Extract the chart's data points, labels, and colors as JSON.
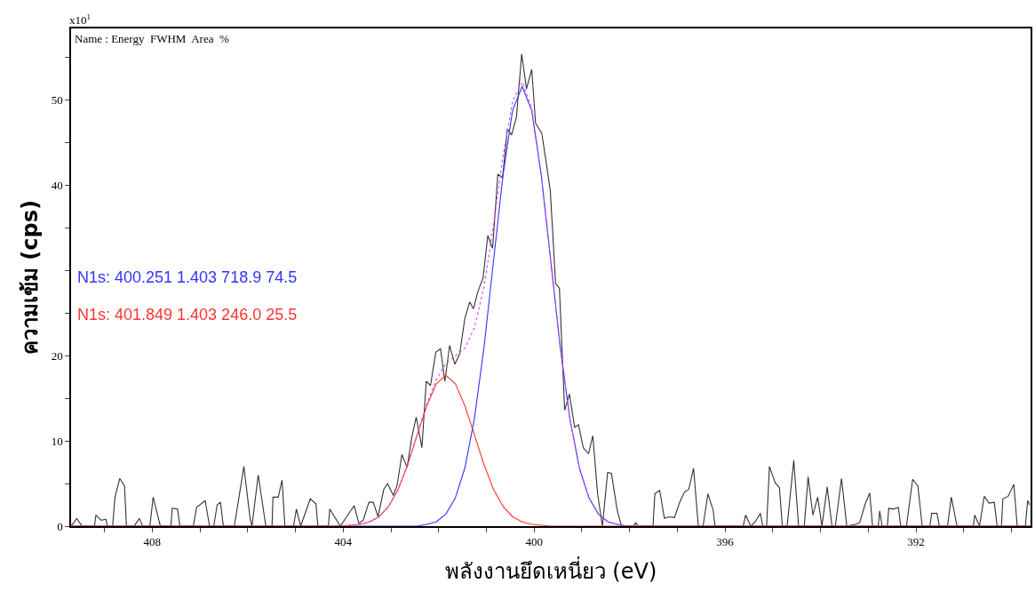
{
  "chart_data": {
    "type": "line",
    "xlabel": "พลังงานยึดเหนี่ยว (eV)",
    "ylabel": "ความเข้ม (cps)",
    "annotations": [
      "x10$^{1}$",
      "Name : Energy  FWHM  Area  %"
    ],
    "xlim": [
      409.7,
      389.6
    ],
    "xticks": [
      {
        "value": 409,
        "label": null
      },
      408,
      {
        "value": 407,
        "label": null
      },
      {
        "value": 406,
        "label": null
      },
      {
        "value": 405,
        "label": null
      },
      404,
      {
        "value": 403,
        "label": null
      },
      {
        "value": 402,
        "label": null
      },
      {
        "value": 401,
        "label": null
      },
      400,
      {
        "value": 399,
        "label": null
      },
      {
        "value": 398,
        "label": null
      },
      {
        "value": 397,
        "label": null
      },
      396,
      {
        "value": 395,
        "label": null
      },
      {
        "value": 394,
        "label": null
      },
      {
        "value": 393,
        "label": null
      },
      392,
      {
        "value": 391,
        "label": null
      },
      {
        "value": 390,
        "label": null
      }
    ],
    "ylim": [
      0,
      58.4
    ],
    "yticks": [
      0,
      {
        "value": 5,
        "label": null
      },
      10,
      {
        "value": 15,
        "label": null
      },
      20,
      {
        "value": 25,
        "label": null
      },
      {
        "value": 30,
        "label": null
      },
      {
        "value": 35,
        "label": null
      },
      40,
      {
        "value": 45,
        "label": null
      },
      50,
      {
        "value": 55,
        "label": null
      }
    ],
    "legend": false,
    "marker": "none",
    "series": [
      {
        "color": "#333333",
        "line_style": "solid",
        "x": [
          409.7,
          409.58,
          409.47,
          409.21,
          409.18,
          409.07,
          408.97,
          408.94,
          408.83,
          408.78,
          408.68,
          408.58,
          408.54,
          408.38,
          408.27,
          408.2,
          408.05,
          407.98,
          407.83,
          407.61,
          407.58,
          407.47,
          407.42,
          407.14,
          407.07,
          406.89,
          406.8,
          406.71,
          406.64,
          406.57,
          406.51,
          406.28,
          406.08,
          405.95,
          405.91,
          405.78,
          405.62,
          405.49,
          405.47,
          405.36,
          405.28,
          405.22,
          405.04,
          404.98,
          404.89,
          404.69,
          404.57,
          404.53,
          404.31,
          404.28,
          404.06,
          403.77,
          403.67,
          403.58,
          403.46,
          403.37,
          403.27,
          403.15,
          403.07,
          402.95,
          402.87,
          402.77,
          402.66,
          402.56,
          402.47,
          402.35,
          402.26,
          402.17,
          402.06,
          401.96,
          401.87,
          401.77,
          401.66,
          401.56,
          401.45,
          401.35,
          401.27,
          401.18,
          401.07,
          400.97,
          400.87,
          400.76,
          400.66,
          400.56,
          400.47,
          400.37,
          400.26,
          400.16,
          400.05,
          399.97,
          399.84,
          399.75,
          399.66,
          399.55,
          399.47,
          399.36,
          399.26,
          399.15,
          399.07,
          398.97,
          398.86,
          398.77,
          398.67,
          398.57,
          398.46,
          398.38,
          398.26,
          398.17,
          397.92,
          397.87,
          397.82,
          397.51,
          397.47,
          397.37,
          397.27,
          397.17,
          397.06,
          396.95,
          396.85,
          396.76,
          396.66,
          396.56,
          396.46,
          396.36,
          396.25,
          396.21,
          395.62,
          395.57,
          395.46,
          395.37,
          395.26,
          395.21,
          395.13,
          395.07,
          394.95,
          394.86,
          394.8,
          394.7,
          394.56,
          394.46,
          394.34,
          394.26,
          394.16,
          394.06,
          393.97,
          393.86,
          393.76,
          393.69,
          393.56,
          393.45,
          393.27,
          393.18,
          393.07,
          392.97,
          392.91,
          392.79,
          392.76,
          392.71,
          392.6,
          392.57,
          392.48,
          392.37,
          392.32,
          392.2,
          392.07,
          391.96,
          391.87,
          391.71,
          391.67,
          391.56,
          391.51,
          391.34,
          391.26,
          391.14,
          390.8,
          390.77,
          390.67,
          390.57,
          390.47,
          390.36,
          390.3,
          390.21,
          390.18,
          390.07,
          389.95,
          389.88,
          389.71,
          389.66,
          389.62
        ],
        "values": [
          0,
          0.9,
          0,
          0,
          1.3,
          0.7,
          0.8,
          0,
          0,
          3.4,
          5.6,
          4.7,
          0,
          0,
          0.9,
          0,
          0,
          3.4,
          0,
          0,
          2.1,
          2.0,
          0,
          0,
          2.2,
          3.0,
          0,
          0,
          2.5,
          2.8,
          0,
          0,
          7.0,
          0.9,
          0,
          6.0,
          0,
          0,
          3.4,
          3.4,
          5.4,
          0,
          0,
          2.0,
          0,
          3.2,
          2.6,
          0,
          0,
          2.0,
          0,
          2.4,
          0.3,
          0.7,
          2.8,
          2.8,
          1.1,
          4.3,
          5.0,
          3.6,
          4.8,
          8.4,
          6.9,
          10.5,
          12.8,
          9.2,
          17.0,
          16.5,
          20.4,
          20.8,
          17.0,
          21.2,
          19.0,
          20.2,
          24.4,
          26.3,
          25.5,
          27.5,
          29.1,
          34.1,
          32.6,
          41.3,
          40.9,
          46.6,
          45.9,
          48.0,
          55.4,
          51.3,
          53.6,
          47.3,
          46.1,
          42.8,
          39.3,
          28.5,
          27.9,
          13.6,
          15.5,
          11.6,
          11.9,
          9.2,
          8.5,
          10.6,
          3.8,
          0,
          6.3,
          6.2,
          1.9,
          0,
          0,
          0.4,
          0,
          0,
          3.8,
          4.2,
          0.9,
          1.1,
          1.0,
          2.8,
          4.0,
          4.3,
          6.8,
          0,
          0,
          3.8,
          1.9,
          0,
          0,
          1.3,
          0,
          0.5,
          1.5,
          0,
          0,
          7.0,
          5.1,
          4.5,
          0,
          0,
          7.7,
          0,
          0,
          5.8,
          1.3,
          3.4,
          0,
          4.6,
          0,
          0,
          5.6,
          0,
          0.2,
          0.4,
          2.5,
          3.9,
          0,
          0,
          1.8,
          0,
          0,
          2.1,
          2.0,
          2.2,
          0,
          0,
          5.5,
          4.7,
          0,
          0,
          1.5,
          1.5,
          0,
          0,
          3.4,
          0,
          0,
          1.3,
          0,
          3.5,
          2.7,
          2.8,
          0,
          0,
          3.2,
          3.5,
          4.9,
          0,
          0,
          3.0,
          2.5
        ]
      },
      {
        "name": "N1s: 400.251 1.403 718.9 74.5",
        "color": "#3333ff",
        "line_style": "solid",
        "x": [
          409.7,
          402.451,
          402.251,
          402.051,
          401.851,
          401.651,
          401.451,
          401.251,
          401.051,
          400.851,
          400.651,
          400.451,
          400.251,
          400.051,
          399.851,
          399.651,
          399.451,
          399.251,
          399.051,
          398.851,
          398.651,
          398.451,
          398.251,
          398.051,
          389.6
        ],
        "values": [
          0,
          0,
          0.2,
          0.5,
          1.4,
          3.3,
          6.8,
          12.6,
          20.9,
          31.1,
          41.2,
          48.8,
          51.6,
          48.8,
          41.2,
          31.1,
          20.9,
          12.6,
          6.8,
          3.3,
          1.4,
          0.5,
          0.2,
          0,
          0
        ]
      },
      {
        "name": "N1s: 401.849 1.403 246.0 25.5",
        "color": "#ff3333",
        "line_style": "solid",
        "x": [
          409.7,
          404.049,
          403.849,
          403.649,
          403.449,
          403.249,
          403.049,
          402.849,
          402.649,
          402.449,
          402.249,
          402.049,
          401.849,
          401.649,
          401.449,
          401.249,
          401.049,
          400.849,
          400.649,
          400.449,
          400.249,
          400.049,
          399.849,
          399.649,
          389.6
        ],
        "values": [
          0,
          0,
          0.1,
          0.2,
          0.5,
          1.1,
          2.3,
          4.3,
          7.2,
          10.7,
          14.1,
          16.7,
          17.7,
          16.7,
          14.1,
          10.7,
          7.2,
          4.3,
          2.3,
          1.1,
          0.5,
          0.2,
          0.1,
          0,
          0
        ]
      },
      {
        "color": "#e040e0",
        "line_style": "dotted",
        "x": [
          409.7,
          404.049,
          403.849,
          403.649,
          403.449,
          403.249,
          403.049,
          402.849,
          402.649,
          402.449,
          402.249,
          402.049,
          401.849,
          401.649,
          401.449,
          401.249,
          401.049,
          400.849,
          400.649,
          400.449,
          400.249,
          400.049,
          399.849,
          399.649,
          399.449,
          399.249,
          399.049,
          398.849,
          398.649,
          398.449,
          398.249,
          398.049,
          389.6
        ],
        "values": [
          0,
          0,
          0.1,
          0.2,
          0.5,
          1.1,
          2.3,
          4.3,
          7.2,
          10.8,
          14.3,
          17.2,
          19.1,
          20.0,
          20.9,
          23.3,
          28.1,
          35.4,
          43.5,
          49.9,
          52.1,
          49.0,
          41.3,
          31.1,
          20.9,
          12.6,
          6.8,
          3.3,
          1.4,
          0.5,
          0.2,
          0,
          0
        ]
      }
    ]
  }
}
